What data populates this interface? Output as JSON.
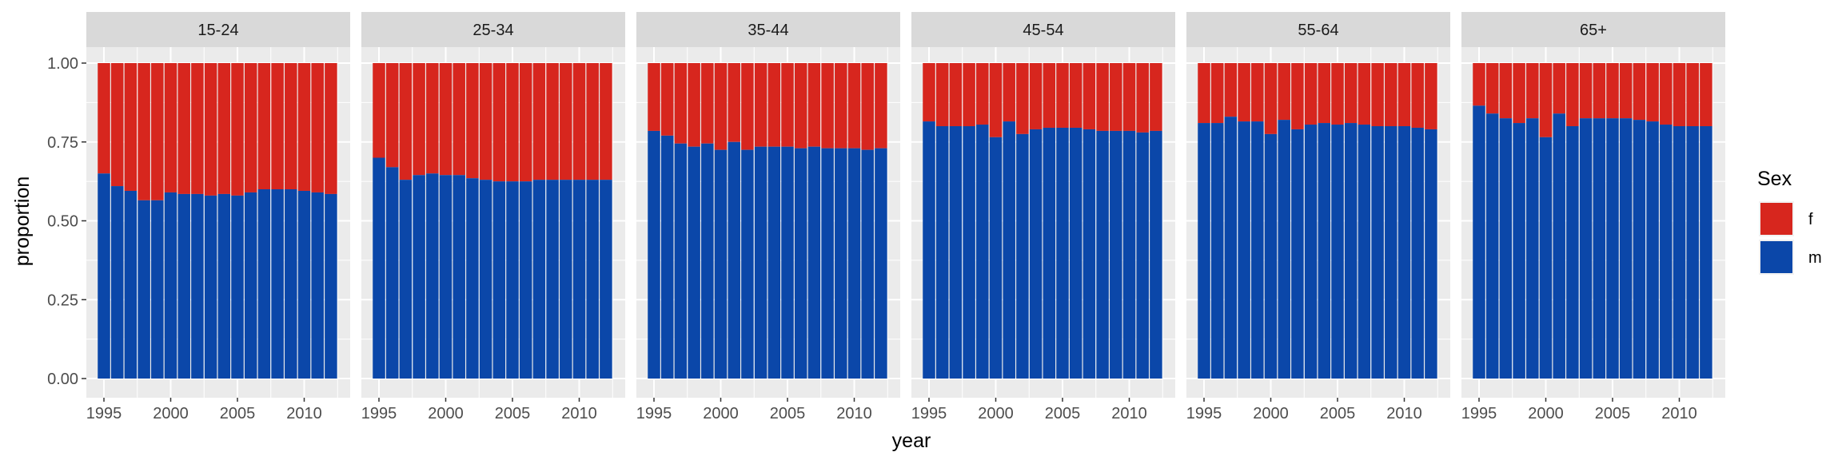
{
  "chart_data": {
    "type": "bar",
    "stacked": true,
    "position": "fill",
    "xlabel": "year",
    "ylabel": "proportion",
    "ylim": [
      0,
      1
    ],
    "yticks": [
      "0.00",
      "0.25",
      "0.50",
      "0.75",
      "1.00"
    ],
    "xticks": [
      "1995",
      "2000",
      "2005",
      "2010"
    ],
    "years": [
      1995,
      1996,
      1997,
      1998,
      1999,
      2000,
      2001,
      2002,
      2003,
      2004,
      2005,
      2006,
      2007,
      2008,
      2009,
      2010,
      2011,
      2012
    ],
    "legend": {
      "title": "Sex",
      "position": "right",
      "items": [
        {
          "label": "f",
          "color": "#D7261E"
        },
        {
          "label": "m",
          "color": "#0B47A9"
        }
      ]
    },
    "colors": {
      "f": "#D7261E",
      "m": "#0B47A9"
    },
    "panels": [
      {
        "label": "15-24",
        "m": [
          0.65,
          0.61,
          0.595,
          0.565,
          0.565,
          0.59,
          0.585,
          0.585,
          0.58,
          0.585,
          0.58,
          0.59,
          0.6,
          0.6,
          0.6,
          0.595,
          0.59,
          0.585
        ]
      },
      {
        "label": "25-34",
        "m": [
          0.7,
          0.67,
          0.63,
          0.645,
          0.65,
          0.645,
          0.645,
          0.635,
          0.63,
          0.625,
          0.625,
          0.625,
          0.63,
          0.63,
          0.63,
          0.63,
          0.63,
          0.63
        ]
      },
      {
        "label": "35-44",
        "m": [
          0.785,
          0.77,
          0.745,
          0.735,
          0.745,
          0.725,
          0.75,
          0.725,
          0.735,
          0.735,
          0.735,
          0.73,
          0.735,
          0.73,
          0.73,
          0.73,
          0.725,
          0.73
        ]
      },
      {
        "label": "45-54",
        "m": [
          0.815,
          0.8,
          0.8,
          0.8,
          0.805,
          0.765,
          0.815,
          0.775,
          0.79,
          0.795,
          0.795,
          0.795,
          0.79,
          0.785,
          0.785,
          0.785,
          0.78,
          0.785
        ]
      },
      {
        "label": "55-64",
        "m": [
          0.81,
          0.81,
          0.83,
          0.815,
          0.815,
          0.775,
          0.82,
          0.79,
          0.805,
          0.81,
          0.805,
          0.81,
          0.805,
          0.8,
          0.8,
          0.8,
          0.795,
          0.79
        ]
      },
      {
        "label": "65+",
        "m": [
          0.865,
          0.84,
          0.825,
          0.81,
          0.825,
          0.765,
          0.84,
          0.8,
          0.825,
          0.825,
          0.825,
          0.825,
          0.82,
          0.815,
          0.805,
          0.8,
          0.8,
          0.8
        ]
      }
    ]
  }
}
